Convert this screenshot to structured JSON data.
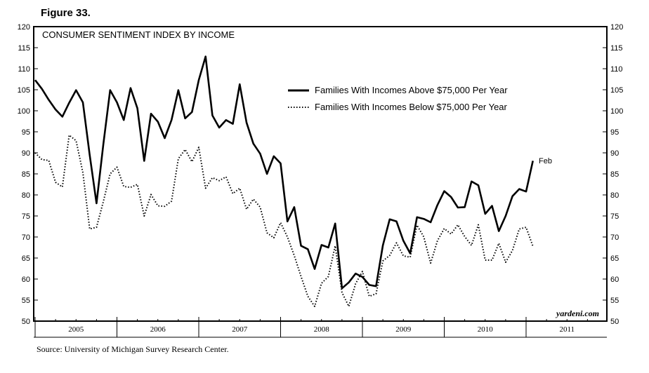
{
  "figure_label": "Figure 33.",
  "source": "Source: University of Michigan Survey Research Center.",
  "watermark": "yardeni.com",
  "chart_data": {
    "type": "line",
    "title": "CONSUMER SENTIMENT INDEX BY INCOME",
    "ylim": [
      50,
      120
    ],
    "yticks": [
      "50",
      "55",
      "60",
      "65",
      "70",
      "75",
      "80",
      "85",
      "90",
      "95",
      "100",
      "105",
      "110",
      "115",
      "120"
    ],
    "x_labels": [
      "2005",
      "2006",
      "2007",
      "2008",
      "2009",
      "2010",
      "2011"
    ],
    "x_start": "2005-01",
    "legend_position": "top-center",
    "annotation": "Feb",
    "series": [
      {
        "name": "Families With Incomes Above $75,000 Per Year",
        "style": "solid",
        "values": [
          107.3,
          105.2,
          102.6,
          100.3,
          98.6,
          101.9,
          104.9,
          102.0,
          89.5,
          78.0,
          92.0,
          104.9,
          102.0,
          97.8,
          105.4,
          100.6,
          88.1,
          99.3,
          97.4,
          93.5,
          97.8,
          104.9,
          98.2,
          99.7,
          107.3,
          112.9,
          98.9,
          96.0,
          97.8,
          96.9,
          106.3,
          97.2,
          92.2,
          89.8,
          85.0,
          89.2,
          87.5,
          73.7,
          77.1,
          67.9,
          67.1,
          62.4,
          68.1,
          67.5,
          73.2,
          57.8,
          59.2,
          61.3,
          60.5,
          58.6,
          58.3,
          68.0,
          74.2,
          73.7,
          69.1,
          66.1,
          74.7,
          74.3,
          73.5,
          77.6,
          80.9,
          79.5,
          77.0,
          77.1,
          83.2,
          82.3,
          75.5,
          77.4,
          71.4,
          75.0,
          79.7,
          81.4,
          80.8,
          88.1
        ]
      },
      {
        "name": "Families With Incomes Below $75,000 Per Year",
        "style": "dotted",
        "values": [
          90.0,
          88.4,
          88.2,
          83.0,
          81.9,
          94.2,
          92.9,
          85.3,
          71.9,
          72.3,
          78.4,
          85.0,
          86.6,
          82.0,
          81.8,
          82.5,
          75.0,
          80.1,
          77.4,
          77.3,
          78.5,
          88.6,
          90.8,
          87.9,
          91.3,
          81.6,
          84.1,
          83.4,
          84.3,
          80.3,
          81.6,
          76.6,
          79.0,
          77.1,
          71.0,
          69.8,
          73.4,
          70.0,
          65.6,
          60.6,
          55.9,
          53.5,
          59.0,
          60.6,
          67.9,
          56.8,
          53.5,
          58.9,
          61.8,
          55.9,
          56.5,
          64.3,
          65.6,
          68.6,
          65.5,
          65.2,
          72.8,
          70.0,
          63.8,
          69.1,
          72.0,
          70.7,
          72.9,
          70.1,
          68.0,
          72.9,
          64.5,
          64.5,
          68.5,
          64.0,
          66.8,
          71.9,
          72.3,
          67.8
        ]
      }
    ]
  }
}
